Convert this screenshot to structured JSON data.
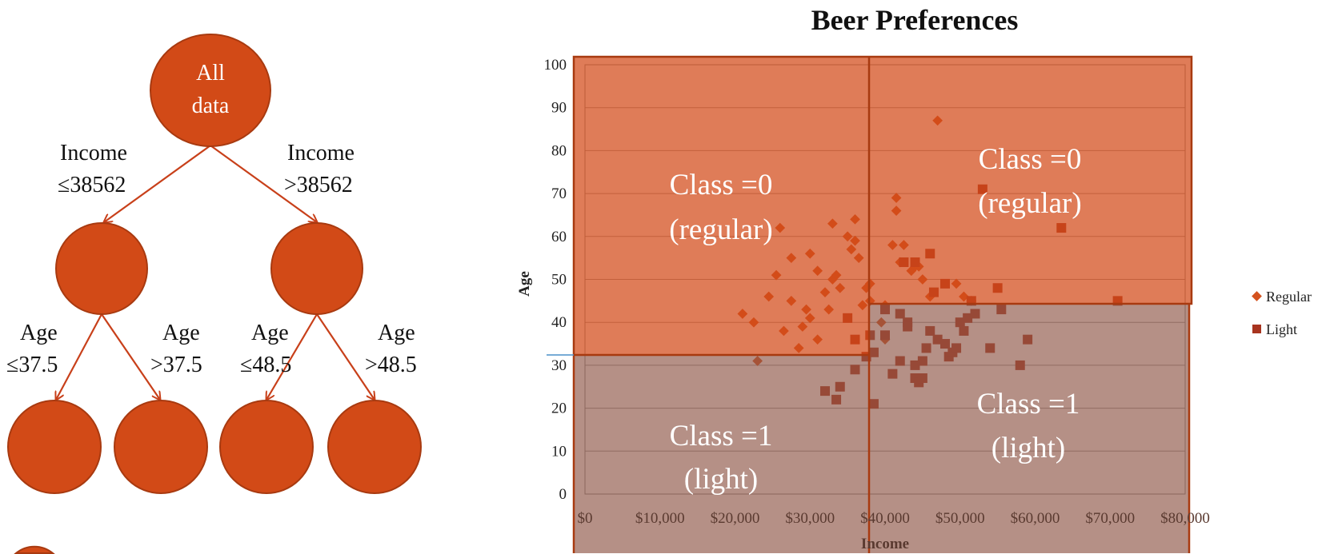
{
  "tree": {
    "root_label_line1": "All",
    "root_label_line2": "data",
    "left_edge": {
      "line1": "Income",
      "line2": "≤38562"
    },
    "right_edge": {
      "line1": "Income",
      "line2": ">38562"
    },
    "ll_edge": {
      "line1": "Age",
      "line2": "≤37.5"
    },
    "lr_edge": {
      "line1": "Age",
      "line2": ">37.5"
    },
    "rl_edge": {
      "line1": "Age",
      "line2": "≤48.5"
    },
    "rr_edge": {
      "line1": "Age",
      "line2": ">48.5"
    }
  },
  "chart_data": {
    "type": "scatter",
    "title": "Beer Preferences",
    "xlabel": "Income",
    "ylabel": "Age",
    "xlim": [
      0,
      80000
    ],
    "ylim": [
      0,
      100
    ],
    "x_ticks": [
      "$0",
      "$10,000",
      "$20,000",
      "$30,000",
      "$40,000",
      "$50,000",
      "$60,000",
      "$70,000",
      "$80,000"
    ],
    "y_ticks": [
      "0",
      "10",
      "20",
      "30",
      "40",
      "50",
      "60",
      "70",
      "80",
      "90",
      "100"
    ],
    "grid": "horizontal",
    "legend_position": "right",
    "regions": [
      {
        "line1": "Class =0",
        "line2": "(regular)",
        "area": "top-left"
      },
      {
        "line1": "Class =0",
        "line2": "(regular)",
        "area": "top-right"
      },
      {
        "line1": "Class =1",
        "line2": "(light)",
        "area": "bottom-left"
      },
      {
        "line1": "Class =1",
        "line2": "(light)",
        "area": "bottom-right"
      }
    ],
    "series": [
      {
        "name": "Regular",
        "marker": "diamond",
        "color": "#D4521E",
        "points": [
          [
            21000,
            42
          ],
          [
            22500,
            40
          ],
          [
            23000,
            31
          ],
          [
            24500,
            46
          ],
          [
            25500,
            51
          ],
          [
            26000,
            62
          ],
          [
            26500,
            38
          ],
          [
            27500,
            45
          ],
          [
            27500,
            55
          ],
          [
            28500,
            34
          ],
          [
            29000,
            39
          ],
          [
            29500,
            43
          ],
          [
            30000,
            41
          ],
          [
            30000,
            56
          ],
          [
            31000,
            36
          ],
          [
            31000,
            52
          ],
          [
            32000,
            47
          ],
          [
            32500,
            43
          ],
          [
            33000,
            63
          ],
          [
            33000,
            50
          ],
          [
            33500,
            51
          ],
          [
            34000,
            48
          ],
          [
            35000,
            60
          ],
          [
            35500,
            57
          ],
          [
            36000,
            59
          ],
          [
            36000,
            64
          ],
          [
            36500,
            55
          ],
          [
            37000,
            44
          ],
          [
            37500,
            48
          ],
          [
            38000,
            49
          ],
          [
            38000,
            45
          ],
          [
            39500,
            40
          ],
          [
            40000,
            44
          ],
          [
            40000,
            36
          ],
          [
            41000,
            58
          ],
          [
            41500,
            66
          ],
          [
            41500,
            69
          ],
          [
            42000,
            54
          ],
          [
            42500,
            58
          ],
          [
            43500,
            52
          ],
          [
            44000,
            53
          ],
          [
            44500,
            53
          ],
          [
            45000,
            50
          ],
          [
            46000,
            46
          ],
          [
            47000,
            87
          ],
          [
            49500,
            49
          ],
          [
            50500,
            46
          ],
          [
            51500,
            45
          ]
        ]
      },
      {
        "name": "Light",
        "marker": "square",
        "color": "#A8341F",
        "points": [
          [
            35000,
            41
          ],
          [
            36000,
            36
          ],
          [
            38000,
            37
          ],
          [
            36000,
            29
          ],
          [
            37500,
            32
          ],
          [
            32000,
            24
          ],
          [
            33500,
            22
          ],
          [
            34000,
            25
          ],
          [
            38500,
            33
          ],
          [
            40000,
            43
          ],
          [
            40000,
            37
          ],
          [
            41000,
            28
          ],
          [
            42000,
            31
          ],
          [
            42000,
            42
          ],
          [
            43000,
            40
          ],
          [
            43000,
            39
          ],
          [
            42500,
            54
          ],
          [
            44000,
            30
          ],
          [
            44000,
            27
          ],
          [
            44500,
            26
          ],
          [
            45000,
            27
          ],
          [
            45000,
            31
          ],
          [
            45500,
            34
          ],
          [
            46000,
            38
          ],
          [
            46000,
            56
          ],
          [
            46500,
            47
          ],
          [
            47000,
            36
          ],
          [
            48000,
            35
          ],
          [
            48000,
            49
          ],
          [
            48500,
            32
          ],
          [
            49000,
            33
          ],
          [
            49500,
            34
          ],
          [
            50000,
            40
          ],
          [
            50500,
            38
          ],
          [
            51000,
            41
          ],
          [
            51500,
            45
          ],
          [
            52000,
            42
          ],
          [
            53000,
            71
          ],
          [
            54000,
            34
          ],
          [
            55000,
            48
          ],
          [
            55500,
            43
          ],
          [
            58000,
            30
          ],
          [
            59000,
            36
          ],
          [
            63500,
            62
          ],
          [
            71000,
            45
          ],
          [
            44000,
            54
          ],
          [
            38500,
            21
          ]
        ]
      }
    ]
  }
}
